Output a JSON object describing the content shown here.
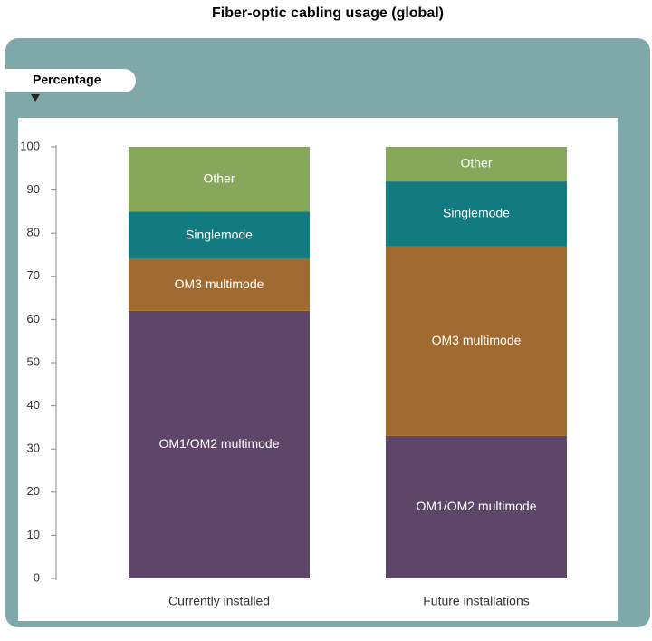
{
  "chart_data": {
    "type": "bar",
    "stacked": true,
    "title": "Fiber-optic cabling usage (global)",
    "y_label": "Percentage",
    "categories": [
      "Currently installed",
      "Future installations"
    ],
    "series": [
      {
        "name": "OM1/OM2 multimode",
        "color": "#5d4668",
        "values": [
          62,
          33
        ]
      },
      {
        "name": "OM3 multimode",
        "color": "#a06b30",
        "values": [
          12,
          44
        ]
      },
      {
        "name": "Singlemode",
        "color": "#127b80",
        "values": [
          11,
          15
        ]
      },
      {
        "name": "Other",
        "color": "#87a85b",
        "values": [
          15,
          8
        ]
      }
    ],
    "ylim": [
      0,
      100
    ],
    "yticks": [
      0,
      10,
      20,
      30,
      40,
      50,
      60,
      70,
      80,
      90,
      100
    ]
  }
}
